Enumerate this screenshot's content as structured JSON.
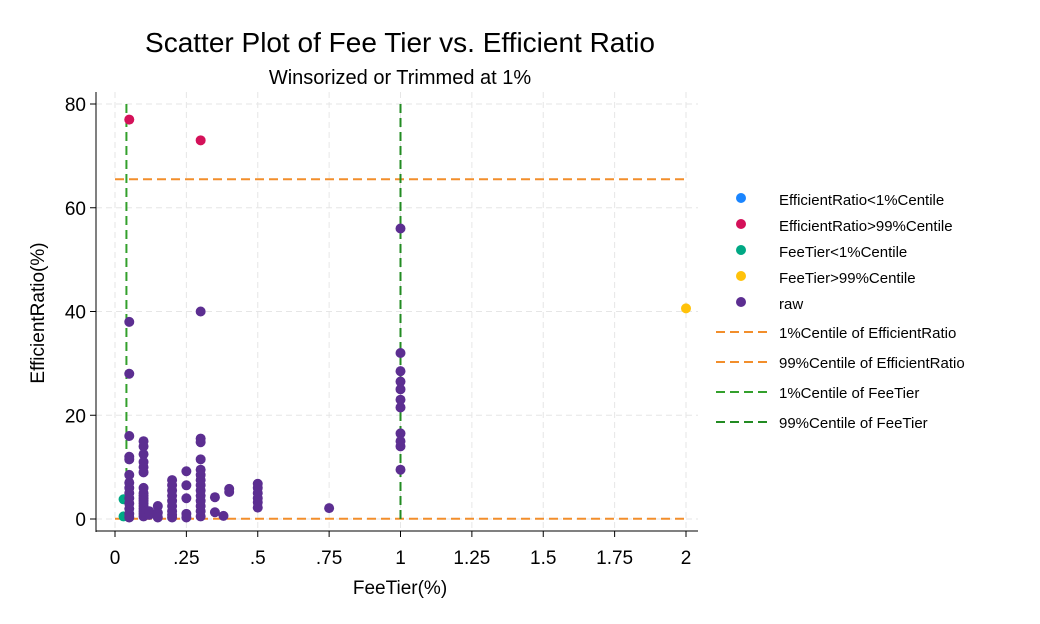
{
  "chart_data": {
    "type": "scatter",
    "title": "Scatter Plot of Fee Tier vs. Efficient Ratio",
    "subtitle": "Winsorized or Trimmed at 1%",
    "xlabel": "FeeTier(%)",
    "ylabel": "EfficientRatio(%)",
    "xlim": [
      0,
      2
    ],
    "ylim": [
      0,
      80
    ],
    "x_ticks": [
      0,
      0.25,
      0.5,
      0.75,
      1,
      1.25,
      1.5,
      1.75,
      2
    ],
    "x_tick_labels": [
      "0",
      ".25",
      ".5",
      ".75",
      "1",
      "1.25",
      "1.5",
      "1.75",
      "2"
    ],
    "y_ticks": [
      0,
      20,
      40,
      60,
      80
    ],
    "y_tick_labels": [
      "0",
      "20",
      "40",
      "60",
      "80"
    ],
    "grid": true,
    "legend_position": "right",
    "series": [
      {
        "name": "EfficientRatio<1%Centile",
        "color": "#1a85ff",
        "points": []
      },
      {
        "name": "EfficientRatio>99%Centile",
        "color": "#d41159",
        "points": [
          [
            0.05,
            77
          ],
          [
            0.3,
            73
          ]
        ]
      },
      {
        "name": "FeeTier<1%Centile",
        "color": "#00a884",
        "points": [
          [
            0.03,
            3.8
          ],
          [
            0.03,
            0.5
          ]
        ]
      },
      {
        "name": "FeeTier>99%Centile",
        "color": "#ffc20a",
        "points": [
          [
            2,
            40.6
          ]
        ]
      },
      {
        "name": "raw",
        "color": "#5c2e91",
        "points": [
          [
            0.05,
            38
          ],
          [
            0.05,
            28
          ],
          [
            0.05,
            16
          ],
          [
            0.05,
            12
          ],
          [
            0.05,
            11.5
          ],
          [
            0.05,
            8.5
          ],
          [
            0.05,
            7
          ],
          [
            0.05,
            6
          ],
          [
            0.05,
            5
          ],
          [
            0.05,
            4
          ],
          [
            0.05,
            3
          ],
          [
            0.05,
            2
          ],
          [
            0.05,
            1
          ],
          [
            0.05,
            0.3
          ],
          [
            0.1,
            15
          ],
          [
            0.1,
            14
          ],
          [
            0.1,
            12.5
          ],
          [
            0.1,
            11
          ],
          [
            0.1,
            10
          ],
          [
            0.1,
            9
          ],
          [
            0.1,
            6
          ],
          [
            0.1,
            5
          ],
          [
            0.1,
            4.5
          ],
          [
            0.1,
            4
          ],
          [
            0.1,
            3.5
          ],
          [
            0.1,
            3
          ],
          [
            0.1,
            2.5
          ],
          [
            0.1,
            2
          ],
          [
            0.1,
            1.5
          ],
          [
            0.1,
            1
          ],
          [
            0.1,
            0.5
          ],
          [
            0.12,
            1.5
          ],
          [
            0.12,
            0.8
          ],
          [
            0.15,
            2.5
          ],
          [
            0.15,
            1.2
          ],
          [
            0.15,
            0.3
          ],
          [
            0.2,
            7.5
          ],
          [
            0.2,
            6.5
          ],
          [
            0.2,
            5.5
          ],
          [
            0.2,
            4.5
          ],
          [
            0.2,
            3.5
          ],
          [
            0.2,
            2.5
          ],
          [
            0.2,
            1.5
          ],
          [
            0.2,
            0.8
          ],
          [
            0.2,
            0.3
          ],
          [
            0.25,
            9.2
          ],
          [
            0.25,
            6.5
          ],
          [
            0.25,
            4
          ],
          [
            0.25,
            1
          ],
          [
            0.25,
            0.3
          ],
          [
            0.3,
            40
          ],
          [
            0.3,
            15.5
          ],
          [
            0.3,
            14.8
          ],
          [
            0.3,
            11.5
          ],
          [
            0.3,
            9.5
          ],
          [
            0.3,
            8.5
          ],
          [
            0.3,
            7.5
          ],
          [
            0.3,
            6.5
          ],
          [
            0.3,
            5.5
          ],
          [
            0.3,
            4.5
          ],
          [
            0.3,
            3.5
          ],
          [
            0.3,
            2.5
          ],
          [
            0.3,
            1.5
          ],
          [
            0.3,
            0.5
          ],
          [
            0.35,
            4.2
          ],
          [
            0.35,
            1.3
          ],
          [
            0.38,
            0.6
          ],
          [
            0.4,
            5.8
          ],
          [
            0.4,
            5.2
          ],
          [
            0.5,
            6.8
          ],
          [
            0.5,
            6
          ],
          [
            0.5,
            5
          ],
          [
            0.5,
            4
          ],
          [
            0.5,
            3.2
          ],
          [
            0.5,
            2.2
          ],
          [
            0.75,
            2.1
          ],
          [
            1,
            56
          ],
          [
            1,
            32
          ],
          [
            1,
            28.5
          ],
          [
            1,
            26.5
          ],
          [
            1,
            25
          ],
          [
            1,
            23
          ],
          [
            1,
            21.5
          ],
          [
            1,
            16.5
          ],
          [
            1,
            15
          ],
          [
            1,
            14
          ],
          [
            1,
            9.5
          ]
        ]
      }
    ],
    "reference_lines": [
      {
        "name": "1%Centile of EfficientRatio",
        "axis": "y",
        "value": 0.05,
        "color": "#f28e2b"
      },
      {
        "name": "99%Centile of EfficientRatio",
        "axis": "y",
        "value": 65.5,
        "color": "#f28e2b"
      },
      {
        "name": "1%Centile of FeeTier",
        "axis": "x",
        "value": 0.04,
        "color": "#33a02c"
      },
      {
        "name": "99%Centile of FeeTier",
        "axis": "x",
        "value": 1,
        "color": "#228b22"
      }
    ]
  }
}
